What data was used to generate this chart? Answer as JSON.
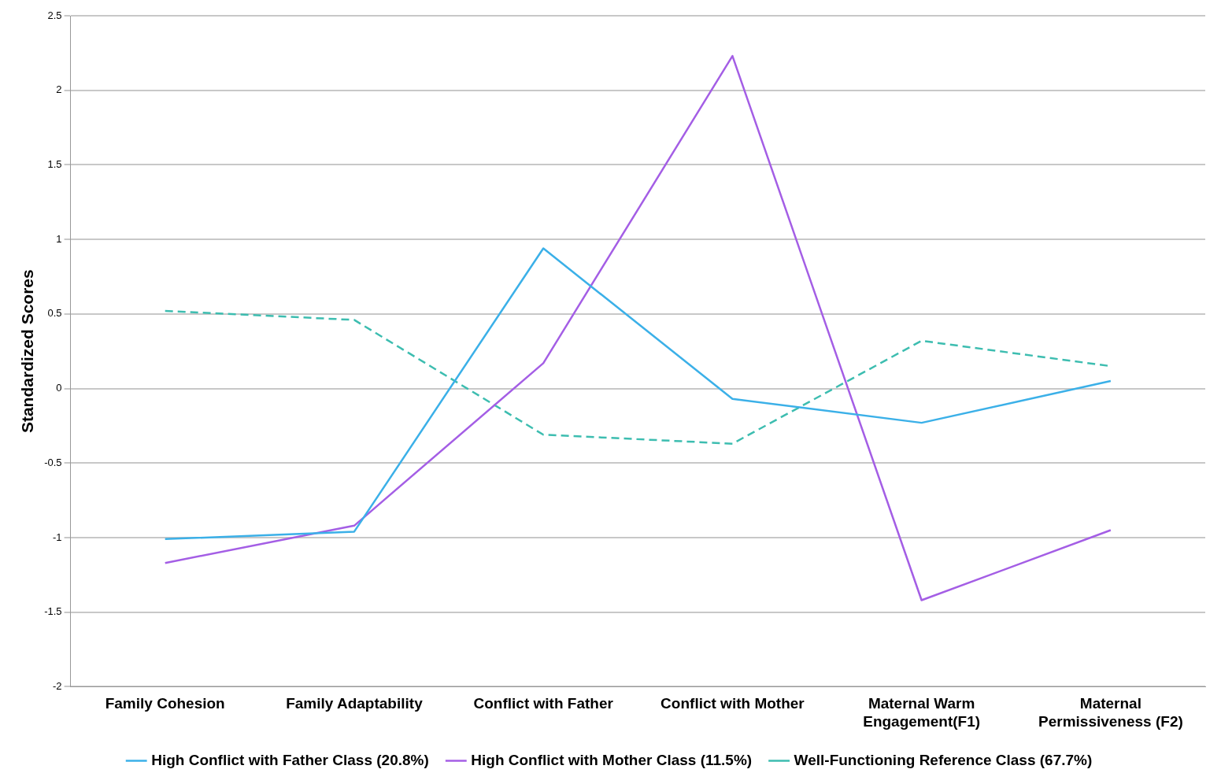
{
  "chart_data": {
    "type": "line",
    "ylabel": "Standardized Scores",
    "categories": [
      "Family Cohesion",
      "Family Adaptability",
      "Conflict with Father",
      "Conflict with Mother",
      "Maternal Warm Engagement(F1)",
      "Maternal Permissiveness (F2)"
    ],
    "series": [
      {
        "name": "High Conflict with Father Class (20.8%)",
        "color": "#3bb0e8",
        "line_style": "solid",
        "values": [
          -1.01,
          -0.96,
          0.94,
          -0.07,
          -0.23,
          0.05
        ]
      },
      {
        "name": "High Conflict with Mother Class (11.5%)",
        "color": "#a45ee5",
        "line_style": "solid",
        "values": [
          -1.17,
          -0.92,
          0.17,
          2.23,
          -1.42,
          -0.95
        ]
      },
      {
        "name": "Well-Functioning Reference Class (67.7%)",
        "color": "#3dbdb0",
        "line_style": "dashed",
        "values": [
          0.52,
          0.46,
          -0.31,
          -0.37,
          0.32,
          0.15
        ]
      }
    ],
    "ylim": [
      -2,
      2.5
    ],
    "yticks": [
      -2,
      -1.5,
      -1,
      -0.5,
      0,
      0.5,
      1,
      1.5,
      2,
      2.5
    ],
    "grid": "y",
    "legend": "bottom",
    "marker": "none"
  }
}
